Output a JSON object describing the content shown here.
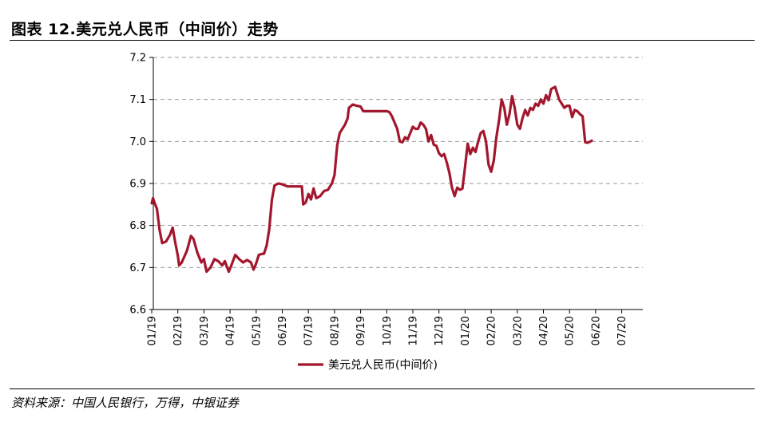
{
  "header": {
    "title": "图表 12.美元兑人民币（中间价）走势"
  },
  "footer": {
    "source": "资料来源：中国人民银行，万得，中银证券"
  },
  "chart_data": {
    "type": "line",
    "title": "",
    "xlabel": "",
    "ylabel": "",
    "ylim": [
      6.6,
      7.2
    ],
    "y_ticks": [
      "6.6",
      "6.7",
      "6.8",
      "6.9",
      "7.0",
      "7.1",
      "7.2"
    ],
    "x_ticks": [
      "01/19",
      "02/19",
      "03/19",
      "04/19",
      "05/19",
      "06/19",
      "07/19",
      "08/19",
      "09/19",
      "10/19",
      "11/19",
      "12/19",
      "01/20",
      "02/20",
      "03/20",
      "04/20",
      "05/20",
      "06/20",
      "07/20"
    ],
    "grid": "horizontal-dashed",
    "legend_position": "bottom-center",
    "series_color": "#a3172e",
    "series": [
      {
        "name": "美元兑人民币(中间价)",
        "points": [
          [
            0.0,
            6.853
          ],
          [
            0.05,
            6.865
          ],
          [
            0.1,
            6.855
          ],
          [
            0.2,
            6.84
          ],
          [
            0.3,
            6.79
          ],
          [
            0.4,
            6.758
          ],
          [
            0.55,
            6.762
          ],
          [
            0.7,
            6.778
          ],
          [
            0.8,
            6.795
          ],
          [
            0.9,
            6.76
          ],
          [
            1.0,
            6.728
          ],
          [
            1.05,
            6.705
          ],
          [
            1.15,
            6.712
          ],
          [
            1.35,
            6.74
          ],
          [
            1.5,
            6.775
          ],
          [
            1.6,
            6.768
          ],
          [
            1.75,
            6.735
          ],
          [
            1.9,
            6.712
          ],
          [
            2.0,
            6.72
          ],
          [
            2.1,
            6.69
          ],
          [
            2.25,
            6.7
          ],
          [
            2.4,
            6.72
          ],
          [
            2.55,
            6.715
          ],
          [
            2.7,
            6.705
          ],
          [
            2.8,
            6.715
          ],
          [
            2.95,
            6.69
          ],
          [
            3.05,
            6.705
          ],
          [
            3.2,
            6.73
          ],
          [
            3.35,
            6.72
          ],
          [
            3.5,
            6.712
          ],
          [
            3.65,
            6.718
          ],
          [
            3.8,
            6.712
          ],
          [
            3.9,
            6.695
          ],
          [
            4.0,
            6.71
          ],
          [
            4.1,
            6.73
          ],
          [
            4.2,
            6.732
          ],
          [
            4.3,
            6.733
          ],
          [
            4.4,
            6.752
          ],
          [
            4.5,
            6.79
          ],
          [
            4.6,
            6.86
          ],
          [
            4.7,
            6.895
          ],
          [
            4.85,
            6.9
          ],
          [
            5.0,
            6.898
          ],
          [
            5.2,
            6.893
          ],
          [
            5.4,
            6.893
          ],
          [
            5.6,
            6.893
          ],
          [
            5.75,
            6.893
          ],
          [
            5.8,
            6.85
          ],
          [
            5.9,
            6.855
          ],
          [
            6.0,
            6.875
          ],
          [
            6.1,
            6.862
          ],
          [
            6.2,
            6.888
          ],
          [
            6.3,
            6.865
          ],
          [
            6.45,
            6.87
          ],
          [
            6.6,
            6.882
          ],
          [
            6.75,
            6.885
          ],
          [
            6.9,
            6.9
          ],
          [
            7.0,
            6.92
          ],
          [
            7.1,
            6.99
          ],
          [
            7.2,
            7.02
          ],
          [
            7.3,
            7.03
          ],
          [
            7.4,
            7.04
          ],
          [
            7.5,
            7.055
          ],
          [
            7.55,
            7.08
          ],
          [
            7.7,
            7.088
          ],
          [
            7.85,
            7.085
          ],
          [
            8.0,
            7.083
          ],
          [
            8.1,
            7.072
          ],
          [
            8.3,
            7.072
          ],
          [
            8.6,
            7.072
          ],
          [
            8.9,
            7.072
          ],
          [
            9.0,
            7.072
          ],
          [
            9.1,
            7.07
          ],
          [
            9.2,
            7.06
          ],
          [
            9.3,
            7.045
          ],
          [
            9.4,
            7.03
          ],
          [
            9.5,
            7.0
          ],
          [
            9.6,
            6.998
          ],
          [
            9.7,
            7.01
          ],
          [
            9.8,
            7.005
          ],
          [
            9.9,
            7.02
          ],
          [
            10.0,
            7.035
          ],
          [
            10.1,
            7.03
          ],
          [
            10.2,
            7.03
          ],
          [
            10.3,
            7.045
          ],
          [
            10.4,
            7.04
          ],
          [
            10.5,
            7.03
          ],
          [
            10.6,
            7.0
          ],
          [
            10.7,
            7.015
          ],
          [
            10.8,
            6.992
          ],
          [
            10.9,
            6.99
          ],
          [
            11.0,
            6.972
          ],
          [
            11.1,
            6.965
          ],
          [
            11.2,
            6.97
          ],
          [
            11.3,
            6.95
          ],
          [
            11.4,
            6.925
          ],
          [
            11.5,
            6.89
          ],
          [
            11.6,
            6.87
          ],
          [
            11.7,
            6.89
          ],
          [
            11.8,
            6.885
          ],
          [
            11.9,
            6.888
          ],
          [
            12.0,
            6.94
          ],
          [
            12.1,
            6.995
          ],
          [
            12.2,
            6.97
          ],
          [
            12.3,
            6.985
          ],
          [
            12.4,
            6.975
          ],
          [
            12.5,
            7.0
          ],
          [
            12.6,
            7.02
          ],
          [
            12.7,
            7.025
          ],
          [
            12.8,
            7.0
          ],
          [
            12.9,
            6.945
          ],
          [
            13.0,
            6.928
          ],
          [
            13.1,
            6.955
          ],
          [
            13.2,
            7.01
          ],
          [
            13.3,
            7.05
          ],
          [
            13.4,
            7.1
          ],
          [
            13.5,
            7.08
          ],
          [
            13.6,
            7.04
          ],
          [
            13.7,
            7.065
          ],
          [
            13.8,
            7.108
          ],
          [
            13.9,
            7.08
          ],
          [
            14.0,
            7.04
          ],
          [
            14.1,
            7.03
          ],
          [
            14.2,
            7.055
          ],
          [
            14.3,
            7.075
          ],
          [
            14.4,
            7.062
          ],
          [
            14.5,
            7.08
          ],
          [
            14.6,
            7.075
          ],
          [
            14.7,
            7.09
          ],
          [
            14.8,
            7.085
          ],
          [
            14.9,
            7.1
          ],
          [
            15.0,
            7.09
          ],
          [
            15.1,
            7.11
          ],
          [
            15.2,
            7.098
          ],
          [
            15.3,
            7.125
          ],
          [
            15.45,
            7.13
          ],
          [
            15.6,
            7.1
          ],
          [
            15.7,
            7.09
          ],
          [
            15.8,
            7.08
          ],
          [
            15.9,
            7.085
          ],
          [
            16.0,
            7.085
          ],
          [
            16.1,
            7.058
          ],
          [
            16.2,
            7.075
          ],
          [
            16.3,
            7.072
          ],
          [
            16.4,
            7.065
          ],
          [
            16.5,
            7.06
          ],
          [
            16.6,
            6.998
          ],
          [
            16.7,
            6.997
          ],
          [
            16.8,
            7.0
          ],
          [
            16.85,
            7.002
          ]
        ]
      }
    ]
  }
}
